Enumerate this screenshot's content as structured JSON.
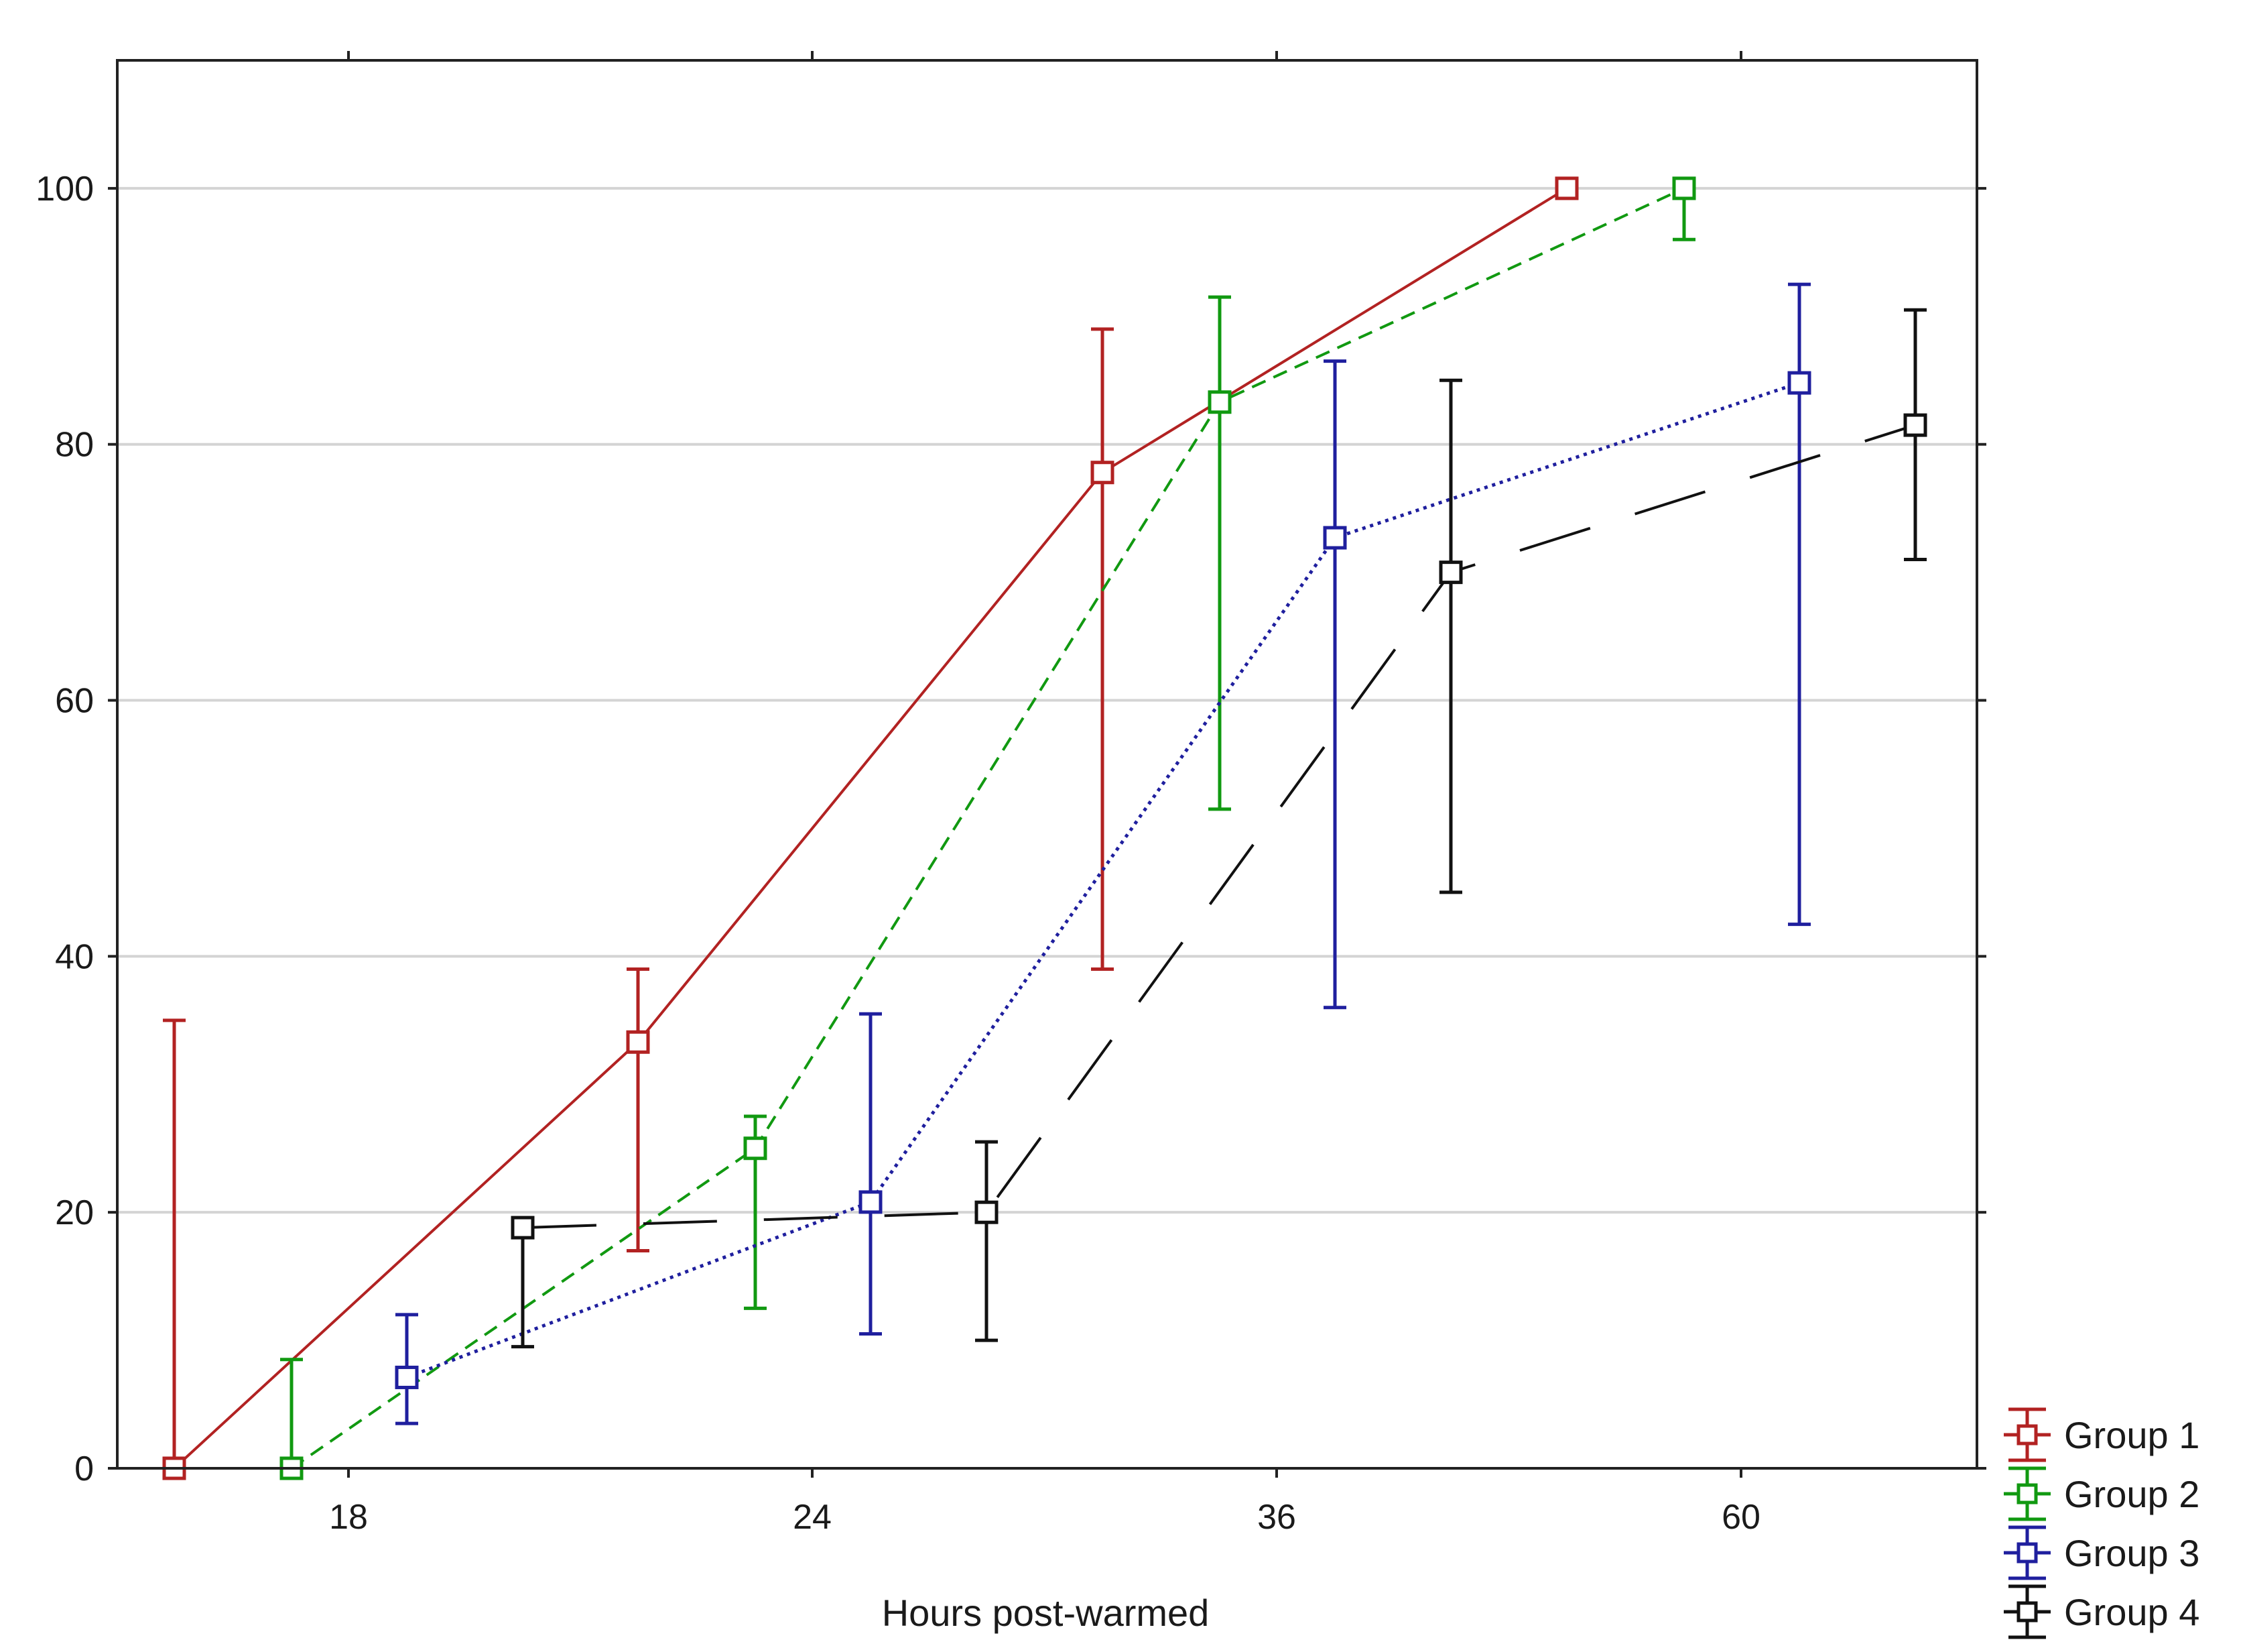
{
  "chart_data": {
    "type": "line",
    "title": "",
    "xlabel": "Hours post-warmed",
    "ylabel": "",
    "categories": [
      "18",
      "24",
      "36",
      "60"
    ],
    "ylim": [
      0,
      110
    ],
    "yticks": [
      0,
      20,
      40,
      60,
      80,
      100
    ],
    "grid": "horizontal",
    "legend_position": "bottom-right, outside plot",
    "series": [
      {
        "name": "Group 1",
        "color": "#b22222",
        "line_style": "solid",
        "points": [
          {
            "x": "18",
            "y": 0,
            "low": 0,
            "high": 35
          },
          {
            "x": "24",
            "y": 33.3,
            "low": 17,
            "high": 39
          },
          {
            "x": "36",
            "y": 77.8,
            "low": 39,
            "high": 89
          },
          {
            "x": "60",
            "y": 100,
            "low": 100,
            "high": 100
          }
        ]
      },
      {
        "name": "Group 2",
        "color": "#119911",
        "line_style": "dashed",
        "points": [
          {
            "x": "18",
            "y": 0,
            "low": 0,
            "high": 8.5
          },
          {
            "x": "24",
            "y": 25,
            "low": 12.5,
            "high": 27.5
          },
          {
            "x": "36",
            "y": 83.3,
            "low": 51.5,
            "high": 91.5
          },
          {
            "x": "60",
            "y": 100,
            "low": 96,
            "high": 100
          }
        ]
      },
      {
        "name": "Group 3",
        "color": "#1f1f9e",
        "line_style": "dotted",
        "points": [
          {
            "x": "18",
            "y": 7.1,
            "low": 3.5,
            "high": 12
          },
          {
            "x": "24",
            "y": 20.8,
            "low": 10.5,
            "high": 35.5
          },
          {
            "x": "36",
            "y": 72.7,
            "low": 36,
            "high": 86.5
          },
          {
            "x": "60",
            "y": 84.8,
            "low": 42.5,
            "high": 92.5
          }
        ]
      },
      {
        "name": "Group 4",
        "color": "#111111",
        "line_style": "long-dash",
        "points": [
          {
            "x": "18",
            "y": 18.8,
            "low": 9.5,
            "high": 19.5
          },
          {
            "x": "24",
            "y": 20,
            "low": 10,
            "high": 25.5
          },
          {
            "x": "36",
            "y": 70,
            "low": 45,
            "high": 85
          },
          {
            "x": "60",
            "y": 81.5,
            "low": 71,
            "high": 90.5
          }
        ]
      }
    ]
  }
}
